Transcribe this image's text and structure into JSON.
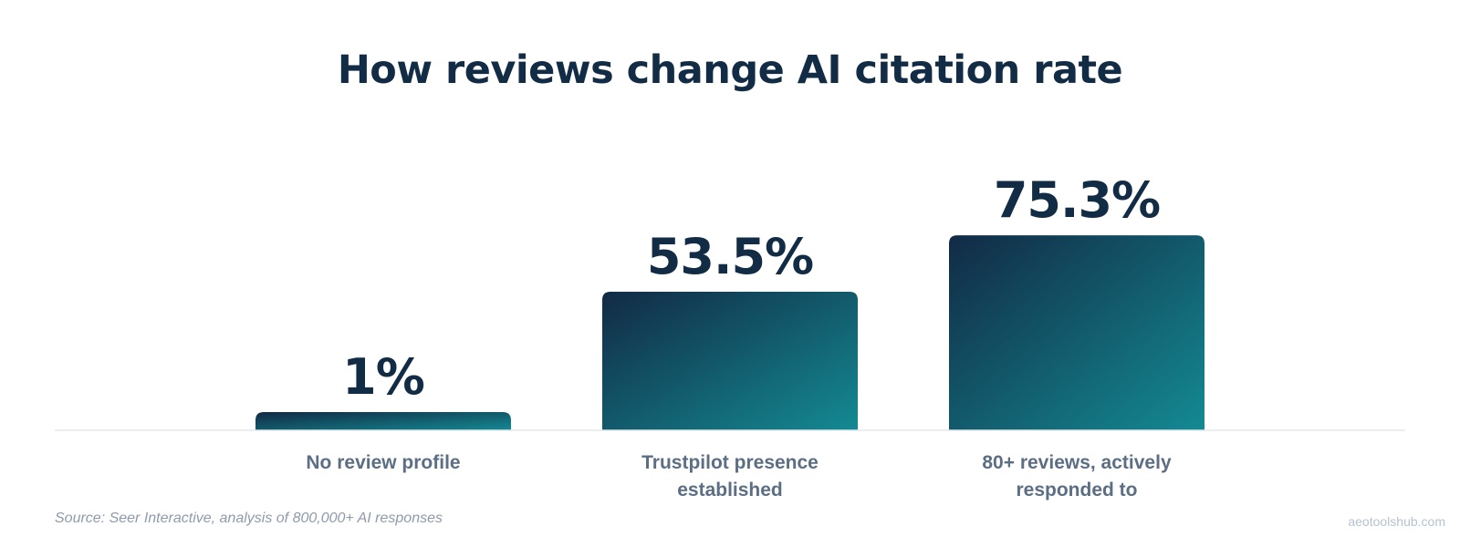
{
  "chart_data": {
    "type": "bar",
    "title": "How reviews change AI citation rate",
    "categories": [
      [
        "No review profile"
      ],
      [
        "Trustpilot presence",
        "established"
      ],
      [
        "80+ reviews, actively",
        "responded to"
      ]
    ],
    "values": [
      1,
      53.5,
      75.3
    ],
    "data_labels": [
      "1%",
      "53.5%",
      "75.3%"
    ],
    "xlabel": "",
    "ylabel": "",
    "ylim": [
      0,
      100
    ],
    "grid": false,
    "legend": "none"
  },
  "source": "Source: Seer Interactive, analysis of 800,000+ AI responses",
  "watermark": "aeotoolshub.com",
  "colors": {
    "title": "#132c45",
    "value_label": "#132c45",
    "category_label": "#5b6e84",
    "bar_gradient_start": "#122a45",
    "bar_gradient_end": "#138a92",
    "baseline": "#e3e8ee",
    "source": "#8d9bad",
    "watermark": "#b7c2cf"
  }
}
